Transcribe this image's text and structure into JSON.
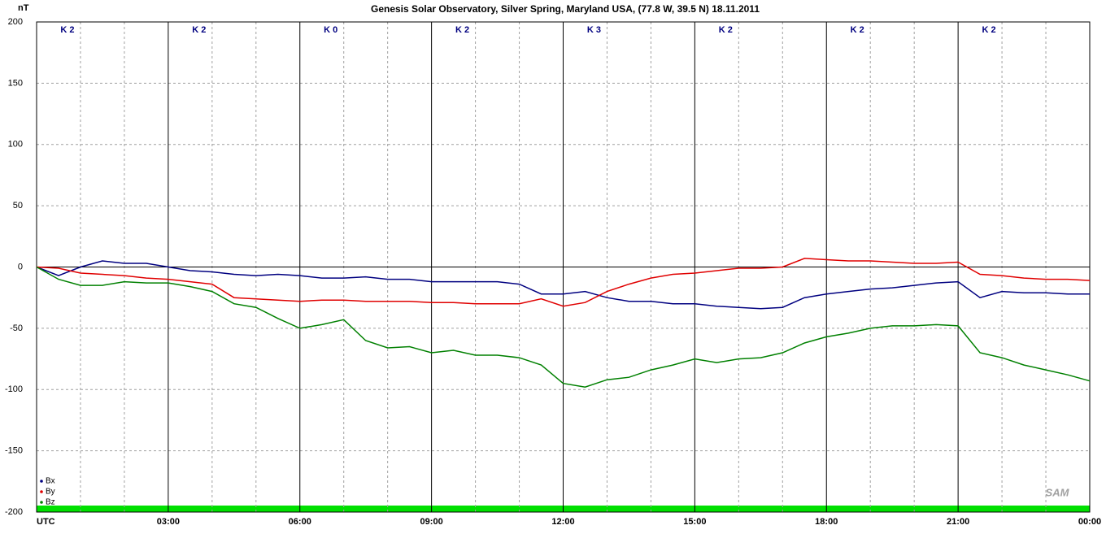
{
  "chart_data": {
    "type": "line",
    "title": "Genesis Solar Observatory, Silver Spring, Maryland USA, (77.8 W, 39.5 N)  18.11.2011",
    "y_label": "nT",
    "k_indices": [
      "K 2",
      "K 2",
      "K 0",
      "K 2",
      "K 3",
      "K 2",
      "K 2",
      "K 2"
    ],
    "logo": "SAM",
    "legend": "bottom-left",
    "grid": true,
    "xlim": [
      0,
      24
    ],
    "xticks": [
      {
        "value": 0,
        "label": "UTC"
      },
      {
        "value": 3,
        "label": "03:00"
      },
      {
        "value": 6,
        "label": "06:00"
      },
      {
        "value": 9,
        "label": "09:00"
      },
      {
        "value": 12,
        "label": "12:00"
      },
      {
        "value": 15,
        "label": "15:00"
      },
      {
        "value": 18,
        "label": "18:00"
      },
      {
        "value": 21,
        "label": "21:00"
      },
      {
        "value": 24,
        "label": "00:00"
      }
    ],
    "x_minor_ticks": [
      1,
      2,
      4,
      5,
      7,
      8,
      10,
      11,
      13,
      14,
      16,
      17,
      19,
      20,
      22,
      23
    ],
    "ylim": [
      -200,
      200
    ],
    "yticks": [
      -200,
      -150,
      -100,
      -50,
      0,
      50,
      100,
      150,
      200
    ],
    "x": [
      0,
      0.5,
      1,
      1.5,
      2,
      2.5,
      3,
      3.5,
      4,
      4.5,
      5,
      5.5,
      6,
      6.5,
      7,
      7.5,
      8,
      8.5,
      9,
      9.5,
      10,
      10.5,
      11,
      11.5,
      12,
      12.5,
      13,
      13.5,
      14,
      14.5,
      15,
      15.5,
      16,
      16.5,
      17,
      17.5,
      18,
      18.5,
      19,
      19.5,
      20,
      20.5,
      21,
      21.5,
      22,
      22.5,
      23,
      23.5,
      24
    ],
    "series": [
      {
        "name": "Bx",
        "color": "#000080",
        "values": [
          0,
          -7,
          0,
          5,
          3,
          3,
          0,
          -3,
          -4,
          -6,
          -7,
          -6,
          -7,
          -9,
          -9,
          -8,
          -10,
          -10,
          -12,
          -12,
          -12,
          -12,
          -14,
          -22,
          -22,
          -20,
          -25,
          -28,
          -28,
          -30,
          -30,
          -32,
          -33,
          -34,
          -33,
          -25,
          -22,
          -20,
          -18,
          -17,
          -15,
          -13,
          -12,
          -25,
          -20,
          -21,
          -21,
          -22,
          -22
        ]
      },
      {
        "name": "By",
        "color": "#e00000",
        "values": [
          0,
          -1,
          -5,
          -6,
          -7,
          -9,
          -10,
          -12,
          -14,
          -25,
          -26,
          -27,
          -28,
          -27,
          -27,
          -28,
          -28,
          -28,
          -29,
          -29,
          -30,
          -30,
          -30,
          -26,
          -32,
          -29,
          -20,
          -14,
          -9,
          -6,
          -5,
          -3,
          -1,
          -1,
          0,
          7,
          6,
          5,
          5,
          4,
          3,
          3,
          4,
          -6,
          -7,
          -9,
          -10,
          -10,
          -11
        ]
      },
      {
        "name": "Bz",
        "color": "#008000",
        "values": [
          0,
          -10,
          -15,
          -15,
          -12,
          -13,
          -13,
          -16,
          -20,
          -30,
          -33,
          -42,
          -50,
          -47,
          -43,
          -60,
          -66,
          -65,
          -70,
          -68,
          -72,
          -72,
          -74,
          -80,
          -95,
          -98,
          -92,
          -90,
          -84,
          -80,
          -75,
          -78,
          -75,
          -74,
          -70,
          -62,
          -57,
          -54,
          -50,
          -48,
          -48,
          -47,
          -48,
          -70,
          -74,
          -80,
          -84,
          -88,
          -93
        ]
      }
    ]
  }
}
